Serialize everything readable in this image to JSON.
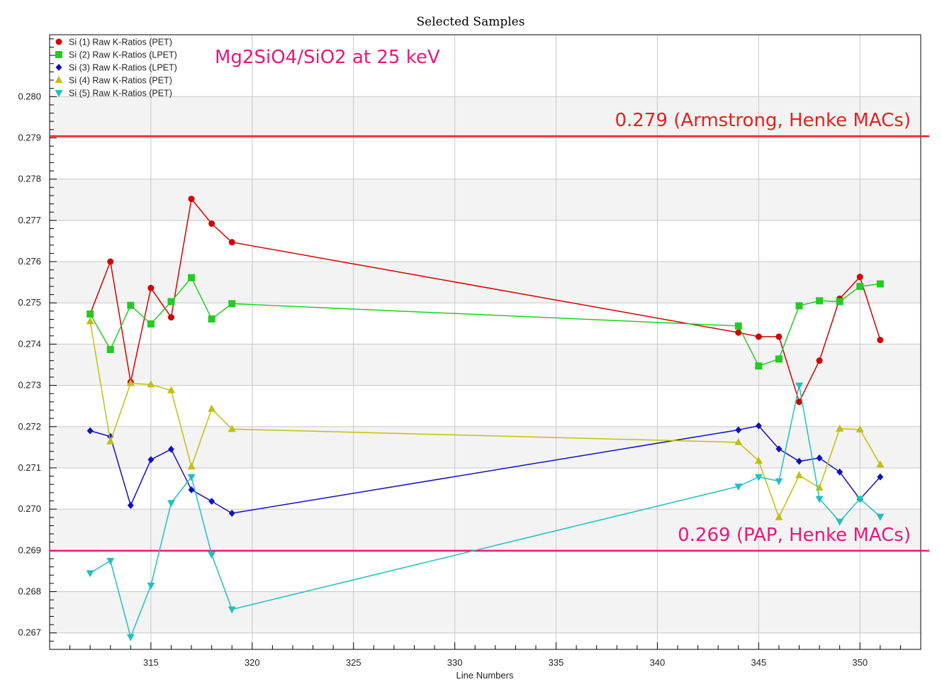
{
  "chart_data": {
    "type": "line",
    "title": "Selected Samples",
    "xlabel": "Line Numbers",
    "ylabel": "",
    "xlim": [
      310,
      353
    ],
    "ylim": [
      0.2666,
      0.2815
    ],
    "x_ticks": [
      315,
      320,
      325,
      330,
      335,
      340,
      345,
      350
    ],
    "y_ticks": [
      0.267,
      0.268,
      0.269,
      0.27,
      0.271,
      0.272,
      0.273,
      0.274,
      0.275,
      0.276,
      0.277,
      0.278,
      0.279,
      0.28
    ],
    "y_tick_labels": [
      "0.267",
      "0.268",
      "0.269",
      "0.270",
      "0.271",
      "0.272",
      "0.273",
      "0.274",
      "0.275",
      "0.276",
      "0.277",
      "0.278",
      "0.279",
      "0.280"
    ],
    "x_tick_labels": [
      "315",
      "320",
      "325",
      "330",
      "335",
      "340",
      "345",
      "350"
    ],
    "grid": true,
    "legend_position": "top-left",
    "x": [
      312,
      313,
      314,
      315,
      316,
      317,
      318,
      319,
      344,
      345,
      346,
      347,
      348,
      349,
      350,
      351
    ],
    "series": [
      {
        "name": "Si (1) Raw K-Ratios (PET)",
        "color": "#d40000",
        "marker": "circle",
        "values": [
          0.27473,
          0.276,
          0.27308,
          0.27536,
          0.27465,
          0.27752,
          0.27692,
          0.27647,
          0.27428,
          0.27418,
          0.27418,
          0.2726,
          0.2736,
          0.2751,
          0.27563,
          0.2741
        ]
      },
      {
        "name": "Si (2) Raw K-Ratios (LPET)",
        "color": "#22cc22",
        "marker": "square",
        "values": [
          0.27473,
          0.27387,
          0.27494,
          0.27449,
          0.27503,
          0.27561,
          0.27461,
          0.27498,
          0.27444,
          0.27347,
          0.27364,
          0.27493,
          0.27505,
          0.27503,
          0.2754,
          0.27546
        ]
      },
      {
        "name": "Si (3) Raw K-Ratios (LPET)",
        "color": "#1010c0",
        "marker": "diamond",
        "values": [
          0.2719,
          0.27176,
          0.27009,
          0.2712,
          0.27145,
          0.27047,
          0.27019,
          0.2699,
          0.27192,
          0.27202,
          0.27146,
          0.27116,
          0.27124,
          0.2709,
          0.27024,
          0.27078
        ]
      },
      {
        "name": "Si (4) Raw K-Ratios (PET)",
        "color": "#c0c010",
        "marker": "triangle-up",
        "values": [
          0.27455,
          0.27164,
          0.27305,
          0.27302,
          0.27288,
          0.27103,
          0.27243,
          0.27194,
          0.27162,
          0.27117,
          0.2698,
          0.27082,
          0.27052,
          0.27195,
          0.27193,
          0.27108
        ]
      },
      {
        "name": "Si (5) Raw K-Ratios (PET)",
        "color": "#20c0c0",
        "marker": "triangle-down",
        "values": [
          0.26845,
          0.26875,
          0.2669,
          0.26815,
          0.27015,
          0.27078,
          0.2689,
          0.26757,
          0.27055,
          0.27078,
          0.27068,
          0.273,
          0.27025,
          0.2697,
          0.27025,
          0.26982
        ]
      }
    ],
    "reference_lines": [
      {
        "y": 0.27904,
        "color": "#e82020",
        "label": "0.279 (Armstrong, Henke MACs)"
      },
      {
        "y": 0.26899,
        "color": "#e8187a",
        "label": "0.269 (PAP, Henke MACs)"
      }
    ],
    "annotation": {
      "text": "Mg2SiO4/SiO2 at 25 keV",
      "color": "#e8187a"
    }
  }
}
